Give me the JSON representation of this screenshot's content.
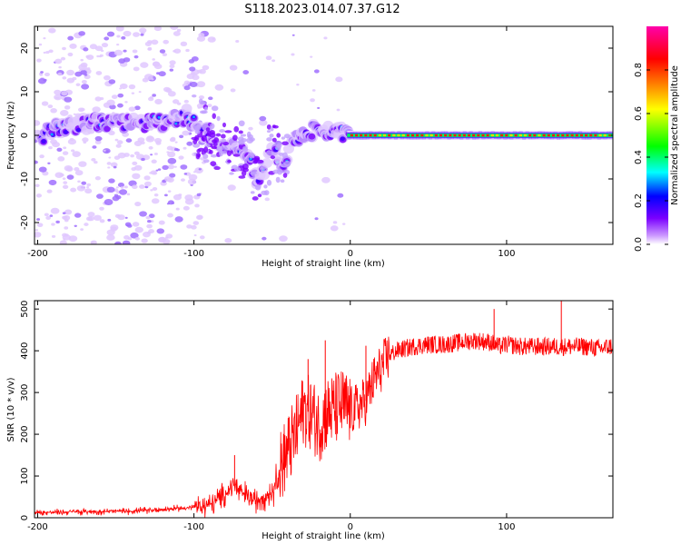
{
  "title": "S118.2023.014.07.37.G12",
  "chart_data": [
    {
      "type": "heatmap",
      "xlabel": "Height of straight line (km)",
      "ylabel": "Frequency (Hz)",
      "xlim": [
        -202,
        168
      ],
      "ylim": [
        -25,
        25
      ],
      "xticks": [
        -200,
        -100,
        0,
        100
      ],
      "yticks": [
        -20,
        -10,
        0,
        10,
        20
      ],
      "colorbar": {
        "label": "Normalized spectral amplitude",
        "range": [
          0,
          1
        ],
        "ticks": [
          0.0,
          0.2,
          0.4,
          0.6,
          0.8
        ],
        "colors": [
          "#ffffff",
          "#cc99ff",
          "#7a00ff",
          "#0000ff",
          "#00ffff",
          "#00ff00",
          "#ffff00",
          "#ff0000",
          "#ff00aa"
        ]
      },
      "ridge": [
        {
          "x": -195,
          "f": 1.5
        },
        {
          "x": -180,
          "f": 2.0
        },
        {
          "x": -160,
          "f": 3.0
        },
        {
          "x": -140,
          "f": 2.5
        },
        {
          "x": -120,
          "f": 3.0
        },
        {
          "x": -105,
          "f": 4.5
        },
        {
          "x": -95,
          "f": 1.0
        },
        {
          "x": -85,
          "f": -1.0
        },
        {
          "x": -75,
          "f": -3.0
        },
        {
          "x": -65,
          "f": -5.0
        },
        {
          "x": -58,
          "f": -11.0
        },
        {
          "x": -50,
          "f": -3.0
        },
        {
          "x": -42,
          "f": -7.0
        },
        {
          "x": -38,
          "f": -1.0
        },
        {
          "x": -30,
          "f": 0.5
        },
        {
          "x": -20,
          "f": 1.5
        },
        {
          "x": -10,
          "f": 0.5
        },
        {
          "x": 0,
          "f": 0.0
        },
        {
          "x": 50,
          "f": 0.0
        },
        {
          "x": 100,
          "f": 0.0
        },
        {
          "x": 165,
          "f": 0.0
        }
      ]
    },
    {
      "type": "line",
      "xlabel": "Height of straight line (km)",
      "ylabel": "SNR (10 * v/v)",
      "xlim": [
        -202,
        168
      ],
      "ylim": [
        0,
        520
      ],
      "xticks": [
        -200,
        -100,
        0,
        100
      ],
      "yticks": [
        0,
        100,
        200,
        300,
        400,
        500
      ],
      "color": "#ff0000",
      "series": [
        {
          "x": [
            -202,
            -180,
            -160,
            -140,
            -120,
            -100,
            -90,
            -80,
            -75,
            -70,
            -60,
            -55,
            -50,
            -45,
            -40,
            -35,
            -30,
            -25,
            -20,
            -15,
            -10,
            -5,
            0,
            5,
            10,
            15,
            20,
            25,
            30,
            40,
            50,
            60,
            70,
            80,
            90,
            95,
            100,
            110,
            120,
            130,
            140,
            150,
            160,
            168
          ],
          "y": [
            12,
            14,
            15,
            16,
            20,
            25,
            30,
            55,
            80,
            60,
            40,
            55,
            60,
            120,
            160,
            200,
            260,
            250,
            220,
            250,
            260,
            270,
            255,
            265,
            280,
            330,
            360,
            390,
            400,
            410,
            415,
            415,
            420,
            425,
            420,
            410,
            415,
            410,
            410,
            410,
            410,
            410,
            405,
            412
          ]
        }
      ],
      "spikes": [
        {
          "x": -74,
          "y": 150
        },
        {
          "x": -27,
          "y": 380
        },
        {
          "x": -16,
          "y": 425
        },
        {
          "x": 10,
          "y": 412
        },
        {
          "x": 92,
          "y": 500
        },
        {
          "x": 135,
          "y": 520
        }
      ]
    }
  ]
}
